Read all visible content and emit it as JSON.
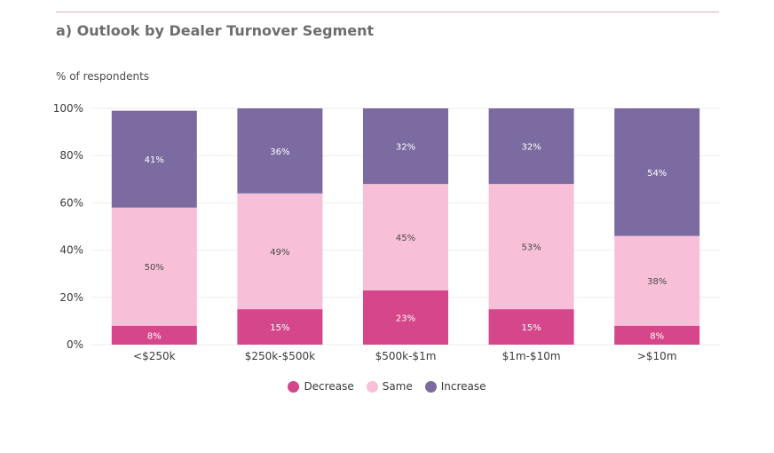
{
  "title": "a) Outlook by Dealer Turnover Segment",
  "colors": {
    "decrease": "#d5478a",
    "same": "#f8c0d8",
    "increase": "#7b6ba0",
    "rule": "#e3a9c2",
    "text": "#3a3a3a"
  },
  "chart_data": {
    "type": "bar",
    "stacked": true,
    "title": "a) Outlook by Dealer Turnover Segment",
    "ylabel": "% of respondents",
    "xlabel": "",
    "ylim": [
      0,
      100
    ],
    "yticks": [
      "0%",
      "20%",
      "40%",
      "60%",
      "80%",
      "100%"
    ],
    "ytick_values": [
      0,
      20,
      40,
      60,
      80,
      100
    ],
    "categories": [
      "<$250k",
      "$250k-$500k",
      "$500k-$1m",
      "$1m-$10m",
      ">$10m"
    ],
    "series": [
      {
        "name": "Decrease",
        "values": [
          8,
          15,
          23,
          15,
          8
        ],
        "labels": [
          "8%",
          "15%",
          "23%",
          "15%",
          "8%"
        ]
      },
      {
        "name": "Same",
        "values": [
          50,
          49,
          45,
          53,
          38
        ],
        "labels": [
          "50%",
          "49%",
          "45%",
          "53%",
          "38%"
        ]
      },
      {
        "name": "Increase",
        "values": [
          41,
          36,
          32,
          32,
          54
        ],
        "labels": [
          "41%",
          "36%",
          "32%",
          "32%",
          "54%"
        ]
      }
    ],
    "grid": true,
    "legend": "bottom"
  }
}
